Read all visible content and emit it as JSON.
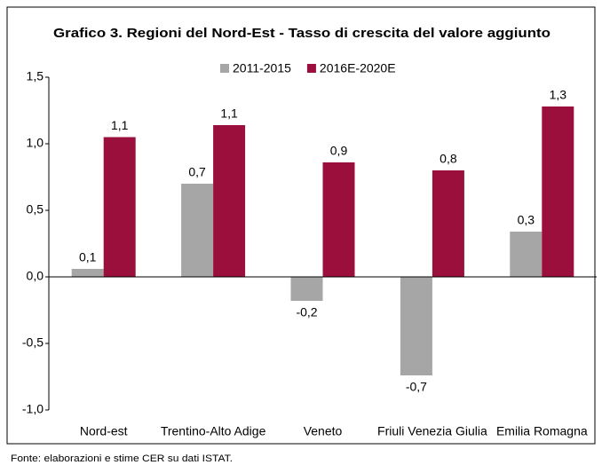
{
  "chart_data": {
    "type": "bar",
    "title": "Grafico 3. Regioni del Nord-Est - Tasso di crescita del valore aggiunto",
    "categories": [
      "Nord-est",
      "Trentino-Alto Adige",
      "Veneto",
      "Friuli Venezia Giulia",
      "Emilia Romagna"
    ],
    "series": [
      {
        "name": "2011-2015",
        "color": "#a6a6a6",
        "values": [
          0.06,
          0.7,
          -0.18,
          -0.74,
          0.34
        ],
        "value_labels": [
          "0,1",
          "0,7",
          "-0,2",
          "-0,7",
          "0,3"
        ]
      },
      {
        "name": "2016E-2020E",
        "color": "#9b0f3d",
        "values": [
          1.05,
          1.14,
          0.86,
          0.8,
          1.28
        ],
        "value_labels": [
          "1,1",
          "1,1",
          "0,9",
          "0,8",
          "1,3"
        ]
      }
    ],
    "ylim": [
      -1,
      1.5
    ],
    "yticks": [
      {
        "value": -1,
        "label": "-1,0"
      },
      {
        "value": -0.5,
        "label": "-0,5"
      },
      {
        "value": 0,
        "label": "0,0"
      },
      {
        "value": 0.5,
        "label": "0,5"
      },
      {
        "value": 1,
        "label": "1,0"
      },
      {
        "value": 1.5,
        "label": "1,5"
      }
    ],
    "grid": false,
    "source": "Fonte: elaborazioni e stime CER su dati ISTAT."
  }
}
